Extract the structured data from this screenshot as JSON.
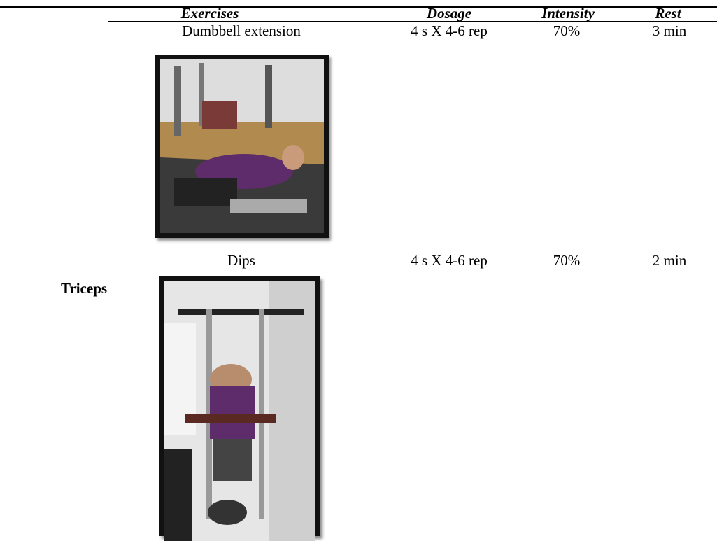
{
  "table": {
    "group": "Triceps",
    "columns": [
      "Exercises",
      "Dosage",
      "Intensity",
      "Rest"
    ],
    "rows": [
      [
        "Dumbbell extension",
        "4 s X 4-6 rep",
        "70%",
        "3 min"
      ],
      [
        "Dips",
        "4 s X 4-6 rep",
        "70%",
        "2 min"
      ]
    ]
  }
}
